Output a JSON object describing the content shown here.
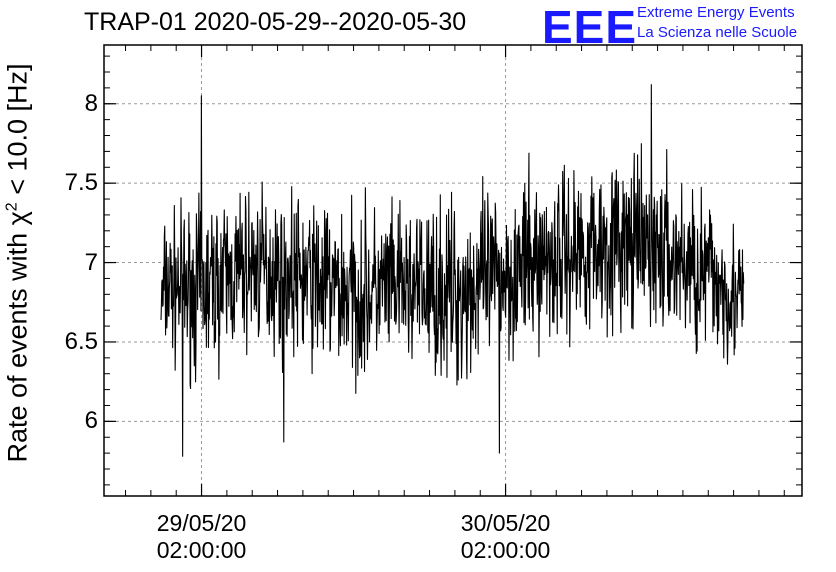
{
  "header": {
    "title": "TRAP-01 2020-05-29--2020-05-30",
    "logo_text": "EEE",
    "org_line1": "Extreme Energy Events",
    "org_line2": "La Scienza nelle Scuole"
  },
  "colors": {
    "brand": "#1a1aff",
    "line": "#000000",
    "grid": "#9a9a9a"
  },
  "chart_data": {
    "type": "line",
    "title": "TRAP-01 2020-05-29--2020-05-30",
    "ylabel_prefix": "Rate of events with ",
    "ylabel_chi": "χ",
    "ylabel_sup": "2",
    "ylabel_suffix": " < 10.0 [Hz]",
    "xlabel": "",
    "x_ticks": [
      {
        "line1": "29/05/20",
        "line2": "02:00:00",
        "hour": 0
      },
      {
        "line1": "30/05/20",
        "line2": "02:00:00",
        "hour": 24
      }
    ],
    "xlim_hours": [
      -7.7,
      47.4
    ],
    "data_range_hours": [
      -3.2,
      42.8
    ],
    "y_ticks": [
      "6",
      "6.5",
      "7",
      "7.5",
      "8"
    ],
    "ylim": [
      5.53,
      8.37
    ],
    "grid": true,
    "series_envelope": [
      {
        "hour": -3,
        "min": 6.25,
        "max": 7.45
      },
      {
        "hour": 0,
        "min": 6.1,
        "max": 7.55
      },
      {
        "hour": 4,
        "min": 6.3,
        "max": 7.65
      },
      {
        "hour": 8,
        "min": 6.2,
        "max": 7.6
      },
      {
        "hour": 12,
        "min": 6.05,
        "max": 7.55
      },
      {
        "hour": 16,
        "min": 6.2,
        "max": 7.5
      },
      {
        "hour": 20,
        "min": 6.0,
        "max": 7.6
      },
      {
        "hour": 24,
        "min": 6.2,
        "max": 7.65
      },
      {
        "hour": 28,
        "min": 6.3,
        "max": 7.8
      },
      {
        "hour": 32,
        "min": 6.4,
        "max": 7.85
      },
      {
        "hour": 36,
        "min": 6.35,
        "max": 7.8
      },
      {
        "hour": 40,
        "min": 6.2,
        "max": 7.65
      },
      {
        "hour": 42.8,
        "min": 6.2,
        "max": 7.3
      }
    ],
    "extremes": [
      {
        "hour": 0,
        "value": 8.05
      },
      {
        "hour": -1.5,
        "value": 5.78
      },
      {
        "hour": 35.5,
        "value": 8.12
      },
      {
        "hour": 23.5,
        "value": 5.8
      },
      {
        "hour": 6.5,
        "value": 5.87
      }
    ]
  }
}
